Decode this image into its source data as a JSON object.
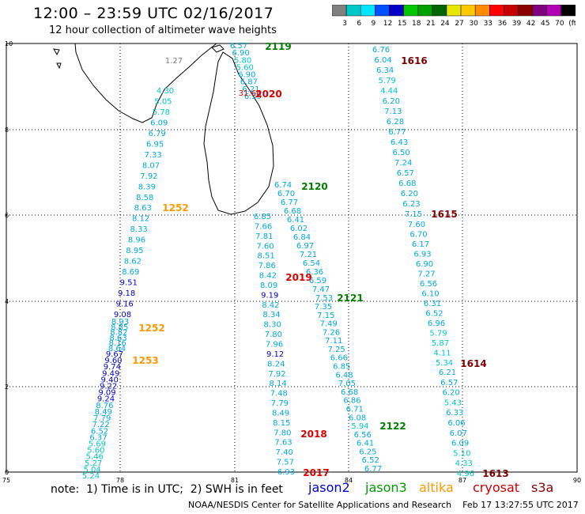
{
  "header": {
    "title": "12:00 – 23:59 UTC 02/16/2017",
    "subtitle": "12 hour collection of altimeter wave heights"
  },
  "colorbar": {
    "colors": [
      "#808080",
      "#00c8c8",
      "#00e6ff",
      "#0050ff",
      "#0000c8",
      "#00c800",
      "#00a000",
      "#006400",
      "#e6e600",
      "#ffc800",
      "#ff8c00",
      "#ff0000",
      "#c80000",
      "#8b0000",
      "#800080",
      "#b400b4",
      "#000000"
    ],
    "labels": [
      "3",
      "6",
      "9",
      "12",
      "15",
      "18",
      "21",
      "24",
      "27",
      "30",
      "33",
      "36",
      "39",
      "42",
      "45",
      "70",
      "(ft)"
    ]
  },
  "axes": {
    "x_ticks": [
      "75",
      "78",
      "81",
      "84",
      "87",
      "90"
    ],
    "y_ticks": [
      "0",
      "2",
      "4",
      "6",
      "8",
      "10"
    ]
  },
  "tracks": [
    {
      "sat": "jason3",
      "label": "2119",
      "values": [
        "6.57",
        "6.90",
        "5.80",
        "5.60",
        "6.90",
        "6.87",
        "6.21",
        "6.59"
      ],
      "label_color": "#008000"
    },
    {
      "sat": "cryosat",
      "label": "2020",
      "values": [
        "31.66"
      ],
      "label_color": "#dd0000"
    },
    {
      "sat": "altika",
      "label": "1252",
      "values": [
        "1.27",
        "4.30",
        "5.05",
        "5.78",
        "6.09",
        "6.79",
        "6.95",
        "7.33",
        "8.07",
        "7.92",
        "8.39",
        "8.58",
        "8.63",
        "8.12",
        "8.33",
        "8.96",
        "8.95",
        "8.62",
        "8.69",
        "9.51",
        "9.18",
        "9.16",
        "9.08"
      ],
      "label_color": "#ff9900"
    },
    {
      "sat": "altika",
      "label": "1252",
      "values": [
        "8.93",
        "8.85",
        "8.82",
        "8.63",
        "8.16",
        "8.64"
      ],
      "label_color": "#ff9900"
    },
    {
      "sat": "altika",
      "label": "1253",
      "values": [
        "9.67",
        "9.60",
        "9.74",
        "9.49",
        "9.40",
        "9.22",
        "9.09",
        "9.24",
        "8.76",
        "8.49",
        "7.79",
        "7.22",
        "6.52",
        "6.37",
        "5.69",
        "5.60",
        "5.46",
        "5.27",
        "5.04",
        "5.24"
      ],
      "label_color": "#ff9900"
    },
    {
      "sat": "cryosat",
      "label": "1616",
      "values": [
        "6.76",
        "6.04",
        "6.34",
        "5.79",
        "4.44",
        "6.20",
        "7.13",
        "6.28",
        "6.77",
        "6.43",
        "6.50",
        "7.24",
        "6.57",
        "6.68",
        "6.20",
        "6.23",
        "7.15"
      ],
      "label_color": "#800000"
    },
    {
      "sat": "cryosat",
      "label": "1615",
      "values": [
        "7.60",
        "6.70",
        "6.17",
        "6.93",
        "6.90",
        "7.27",
        "6.56",
        "6.10",
        "6.31",
        "6.52",
        "6.96",
        "5.79",
        "5.87",
        "4.11",
        "5.34"
      ],
      "label_color": "#800000"
    },
    {
      "sat": "cryosat",
      "label": "1614",
      "values": [
        "6.21",
        "6.57",
        "6.20",
        "5.43",
        "6.33",
        "6.06",
        "6.07",
        "6.09",
        "5.10",
        "4.33",
        "4.96"
      ],
      "label_color": "#800000"
    },
    {
      "sat": "cryosat",
      "label": "1613",
      "values": [],
      "label_color": "#800000"
    },
    {
      "sat": "jason3",
      "label": "2120",
      "values": [
        "6.74",
        "6.70",
        "6.77",
        "6.68",
        "6.41",
        "6.02",
        "6.84",
        "6.97",
        "7.21",
        "6.54",
        "6.36",
        "6.59",
        "7.47",
        "7.53"
      ],
      "label_color": "#008000"
    },
    {
      "sat": "jason3",
      "label": "2121",
      "values": [
        "7.35",
        "7.15",
        "7.49",
        "7.26",
        "7.11",
        "7.25",
        "6.66",
        "6.85",
        "6.48",
        "7.05",
        "6.68",
        "6.86",
        "6.71",
        "6.08",
        "5.94",
        "6.56",
        "6.41",
        "6.25",
        "6.52",
        "6.77"
      ],
      "label_color": "#008000"
    },
    {
      "sat": "jason3",
      "label": "2122",
      "values": [],
      "label_color": "#008000"
    },
    {
      "sat": "cryosat",
      "label": "2019",
      "values": [
        "6.85",
        "7.66",
        "7.81",
        "7.60",
        "8.51",
        "7.86",
        "8.42",
        "8.09",
        "9.19",
        "8.42",
        "8.34",
        "8.30",
        "7.80",
        "7.96",
        "9.12",
        "8.24",
        "7.92",
        "8.14",
        "7.48",
        "7.79",
        "8.49",
        "8.15",
        "7.80",
        "7.63",
        "7.40",
        "7.57",
        "6.93"
      ],
      "label_color": "#dd0000"
    },
    {
      "sat": "cryosat",
      "label": "2018",
      "values": [],
      "label_color": "#dd0000"
    },
    {
      "sat": "cryosat",
      "label": "2017",
      "values": [],
      "label_color": "#dd0000"
    }
  ],
  "legend": {
    "note": "note:  1) Time is in UTC;  2) SWH is in feet",
    "satellites": [
      {
        "name": "jason2",
        "color": "#0000cc"
      },
      {
        "name": "jason3",
        "color": "#009900"
      },
      {
        "name": "altika",
        "color": "#ff9900"
      },
      {
        "name": "cryosat",
        "color": "#cc0000"
      },
      {
        "name": "s3a",
        "color": "#880000"
      }
    ]
  },
  "footer": "NOAA/NESDIS Center for Satellite Applications and Research    Feb 17 13:27:55 UTC 2017"
}
